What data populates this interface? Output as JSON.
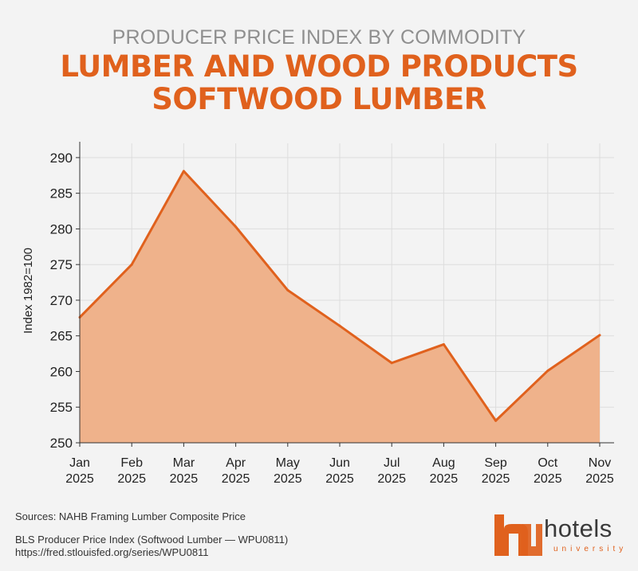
{
  "header": {
    "supertitle": "PRODUCER PRICE INDEX BY COMMODITY",
    "title_line1": "LUMBER AND WOOD PRODUCTS",
    "title_line2": "SOFTWOOD LUMBER"
  },
  "chart_data": {
    "type": "area",
    "title": "LUMBER AND WOOD PRODUCTS SOFTWOOD LUMBER",
    "ylabel": "Index 1982=100",
    "xlabel": "",
    "ylim": [
      250,
      292
    ],
    "yticks": [
      250,
      255,
      260,
      265,
      270,
      275,
      280,
      285,
      290
    ],
    "categories": [
      [
        "Jan",
        "2025"
      ],
      [
        "Feb",
        "2025"
      ],
      [
        "Mar",
        "2025"
      ],
      [
        "Apr",
        "2025"
      ],
      [
        "May",
        "2025"
      ],
      [
        "Jun",
        "2025"
      ],
      [
        "Jul",
        "2025"
      ],
      [
        "Aug",
        "2025"
      ],
      [
        "Sep",
        "2025"
      ],
      [
        "Oct",
        "2025"
      ],
      [
        "Nov",
        "2025"
      ]
    ],
    "values": [
      267.6,
      275.0,
      288.1,
      280.3,
      271.4,
      266.4,
      261.2,
      263.8,
      253.1,
      260.1,
      265.1
    ],
    "grid": true,
    "colors": {
      "line": "#e0611d",
      "fill": "#efb28b",
      "grid": "#dddddd",
      "axis": "#333333"
    }
  },
  "footer": {
    "sources_line1": "Sources: NAHB Framing Lumber Composite Price",
    "sources_line2": "BLS Producer Price Index (Softwood Lumber — WPU0811)",
    "sources_line3": "https://fred.stlouisfed.org/series/WPU0811",
    "logo_word": "hotels",
    "logo_sub": "university"
  }
}
